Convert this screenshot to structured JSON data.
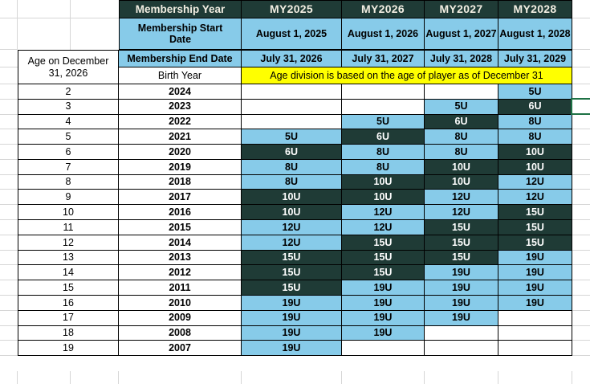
{
  "header": {
    "membership_year": "Membership Year",
    "years": [
      "MY2025",
      "MY2026",
      "MY2027",
      "MY2028"
    ]
  },
  "start_row": {
    "label": "Membership Start Date",
    "values": [
      "August 1, 2025",
      "August 1, 2026",
      "August 1, 2027",
      "August 1, 2028"
    ]
  },
  "end_row": {
    "label": "Membership End Date",
    "values": [
      "July 31, 2026",
      "July 31, 2027",
      "July 31, 2028",
      "July 31, 2029"
    ]
  },
  "age_header": {
    "line1": "Age on December",
    "line2": "31, 2026"
  },
  "labels": {
    "birth_year": "Birth Year"
  },
  "banner": {
    "text": "Age division is based on the age of player as of December 31"
  },
  "rows": [
    {
      "age": "2",
      "year": "2024",
      "d": [
        {
          "v": "",
          "c": ""
        },
        {
          "v": "",
          "c": ""
        },
        {
          "v": "",
          "c": ""
        },
        {
          "v": "5U",
          "c": "b"
        }
      ]
    },
    {
      "age": "3",
      "year": "2023",
      "d": [
        {
          "v": "",
          "c": ""
        },
        {
          "v": "",
          "c": ""
        },
        {
          "v": "5U",
          "c": "b"
        },
        {
          "v": "6U",
          "c": "d"
        }
      ]
    },
    {
      "age": "4",
      "year": "2022",
      "d": [
        {
          "v": "",
          "c": ""
        },
        {
          "v": "5U",
          "c": "b"
        },
        {
          "v": "6U",
          "c": "d"
        },
        {
          "v": "8U",
          "c": "b"
        }
      ]
    },
    {
      "age": "5",
      "year": "2021",
      "d": [
        {
          "v": "5U",
          "c": "b"
        },
        {
          "v": "6U",
          "c": "d"
        },
        {
          "v": "8U",
          "c": "b"
        },
        {
          "v": "8U",
          "c": "b"
        }
      ]
    },
    {
      "age": "6",
      "year": "2020",
      "d": [
        {
          "v": "6U",
          "c": "d"
        },
        {
          "v": "8U",
          "c": "b"
        },
        {
          "v": "8U",
          "c": "b"
        },
        {
          "v": "10U",
          "c": "d"
        }
      ]
    },
    {
      "age": "7",
      "year": "2019",
      "d": [
        {
          "v": "8U",
          "c": "b"
        },
        {
          "v": "8U",
          "c": "b"
        },
        {
          "v": "10U",
          "c": "d"
        },
        {
          "v": "10U",
          "c": "d"
        }
      ]
    },
    {
      "age": "8",
      "year": "2018",
      "d": [
        {
          "v": "8U",
          "c": "b"
        },
        {
          "v": "10U",
          "c": "d"
        },
        {
          "v": "10U",
          "c": "d"
        },
        {
          "v": "12U",
          "c": "b"
        }
      ]
    },
    {
      "age": "9",
      "year": "2017",
      "d": [
        {
          "v": "10U",
          "c": "d"
        },
        {
          "v": "10U",
          "c": "d"
        },
        {
          "v": "12U",
          "c": "b"
        },
        {
          "v": "12U",
          "c": "b"
        }
      ]
    },
    {
      "age": "10",
      "year": "2016",
      "d": [
        {
          "v": "10U",
          "c": "d"
        },
        {
          "v": "12U",
          "c": "b"
        },
        {
          "v": "12U",
          "c": "b"
        },
        {
          "v": "15U",
          "c": "d"
        }
      ]
    },
    {
      "age": "11",
      "year": "2015",
      "d": [
        {
          "v": "12U",
          "c": "b"
        },
        {
          "v": "12U",
          "c": "b"
        },
        {
          "v": "15U",
          "c": "d"
        },
        {
          "v": "15U",
          "c": "d"
        }
      ]
    },
    {
      "age": "12",
      "year": "2014",
      "d": [
        {
          "v": "12U",
          "c": "b"
        },
        {
          "v": "15U",
          "c": "d"
        },
        {
          "v": "15U",
          "c": "d"
        },
        {
          "v": "15U",
          "c": "d"
        }
      ]
    },
    {
      "age": "13",
      "year": "2013",
      "d": [
        {
          "v": "15U",
          "c": "d"
        },
        {
          "v": "15U",
          "c": "d"
        },
        {
          "v": "15U",
          "c": "d"
        },
        {
          "v": "19U",
          "c": "b"
        }
      ]
    },
    {
      "age": "14",
      "year": "2012",
      "d": [
        {
          "v": "15U",
          "c": "d"
        },
        {
          "v": "15U",
          "c": "d"
        },
        {
          "v": "19U",
          "c": "b"
        },
        {
          "v": "19U",
          "c": "b"
        }
      ]
    },
    {
      "age": "15",
      "year": "2011",
      "d": [
        {
          "v": "15U",
          "c": "d"
        },
        {
          "v": "19U",
          "c": "b"
        },
        {
          "v": "19U",
          "c": "b"
        },
        {
          "v": "19U",
          "c": "b"
        }
      ]
    },
    {
      "age": "16",
      "year": "2010",
      "d": [
        {
          "v": "19U",
          "c": "b"
        },
        {
          "v": "19U",
          "c": "b"
        },
        {
          "v": "19U",
          "c": "b"
        },
        {
          "v": "19U",
          "c": "b"
        }
      ]
    },
    {
      "age": "17",
      "year": "2009",
      "d": [
        {
          "v": "19U",
          "c": "b"
        },
        {
          "v": "19U",
          "c": "b"
        },
        {
          "v": "19U",
          "c": "b"
        },
        {
          "v": "",
          "c": ""
        }
      ]
    },
    {
      "age": "18",
      "year": "2008",
      "d": [
        {
          "v": "19U",
          "c": "b"
        },
        {
          "v": "19U",
          "c": "b"
        },
        {
          "v": "",
          "c": ""
        },
        {
          "v": "",
          "c": ""
        }
      ]
    },
    {
      "age": "19",
      "year": "2007",
      "d": [
        {
          "v": "19U",
          "c": "b"
        },
        {
          "v": "",
          "c": ""
        },
        {
          "v": "",
          "c": ""
        },
        {
          "v": "",
          "c": ""
        }
      ]
    }
  ],
  "colors": {
    "dark_teal": "#1F3B36",
    "light_blue": "#87CBE9",
    "banner_yellow": "#FFFF00",
    "selection_green": "#1E7145",
    "gridline_gray": "#D6D6D6"
  }
}
